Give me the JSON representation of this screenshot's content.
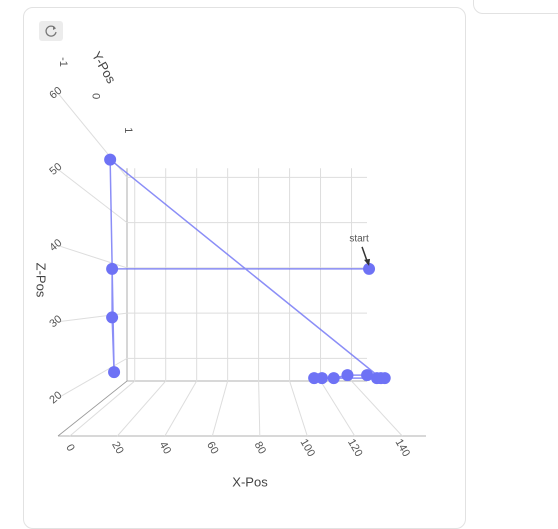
{
  "chart_data": {
    "type": "scatter3d",
    "xaxis_title": "X-Pos",
    "yaxis_title": "Y-Pos",
    "zaxis_title": "Z-Pos",
    "annotation": "start",
    "xlim": [
      -5,
      150
    ],
    "ylim": [
      -1.2,
      1.2
    ],
    "zlim": [
      15,
      62
    ],
    "xticks": [
      0,
      20,
      40,
      60,
      80,
      100,
      120,
      140
    ],
    "yticks": [
      -1,
      0,
      1
    ],
    "zticks": [
      20,
      30,
      40,
      50,
      60
    ],
    "grid": true,
    "series": [
      {
        "color": "#6e72f5",
        "x": [
          136,
          5,
          5,
          6,
          4,
          142,
          140,
          135,
          125,
          118,
          112,
          108,
          144
        ],
        "y": [
          0,
          0,
          0,
          0,
          0,
          0,
          0,
          0,
          0,
          0,
          0,
          0,
          0
        ],
        "z": [
          38,
          38,
          30,
          21,
          56,
          20,
          20,
          20.5,
          20.5,
          20,
          20,
          20,
          20
        ]
      }
    ]
  }
}
